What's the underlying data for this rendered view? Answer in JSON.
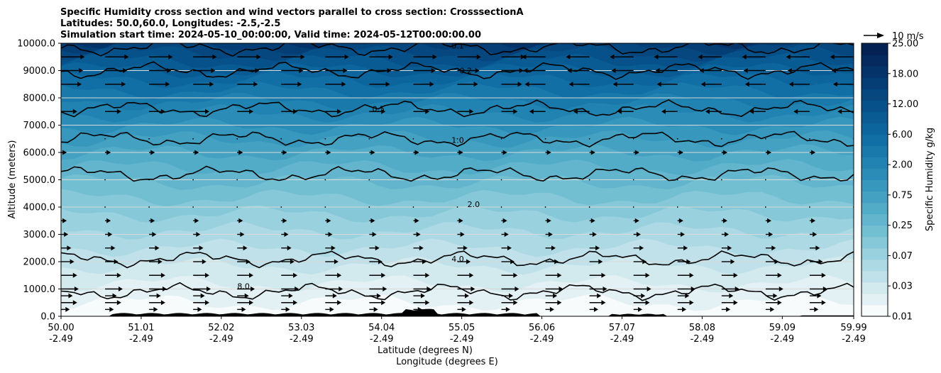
{
  "chart_data": {
    "type": "contour-cross-section",
    "title_lines": [
      "Specific Humidity cross section and wind vectors parallel to cross section: CrosssectionA",
      "Latitudes: 50.0,60.0, Longitudes: -2.5,-2.5",
      "Simulation start time: 2024-05-10_00:00:00, Valid time: 2024-05-12T00:00:00.00"
    ],
    "ylabel": "Altitude (meters)",
    "xlabel_lat": "Latitude (degrees N)",
    "xlabel_lon": "Longitude (degrees E)",
    "ylim": [
      0,
      10000
    ],
    "xlim": [
      50.0,
      59.99
    ],
    "yticks": [
      "0.0",
      "1000.0",
      "2000.0",
      "3000.0",
      "4000.0",
      "5000.0",
      "6000.0",
      "7000.0",
      "8000.0",
      "9000.0",
      "10000.0"
    ],
    "xticks": [
      {
        "lat": "50.00",
        "lon": "-2.49"
      },
      {
        "lat": "51.01",
        "lon": "-2.49"
      },
      {
        "lat": "52.02",
        "lon": "-2.49"
      },
      {
        "lat": "53.03",
        "lon": "-2.49"
      },
      {
        "lat": "54.04",
        "lon": "-2.49"
      },
      {
        "lat": "55.05",
        "lon": "-2.49"
      },
      {
        "lat": "56.06",
        "lon": "-2.49"
      },
      {
        "lat": "57.07",
        "lon": "-2.49"
      },
      {
        "lat": "58.08",
        "lon": "-2.49"
      },
      {
        "lat": "59.09",
        "lon": "-2.49"
      },
      {
        "lat": "59.99",
        "lon": "-2.49"
      }
    ],
    "grid": "horizontal",
    "colorbar": {
      "label": "Specific Humidity g/kg",
      "levels": [
        0.01,
        0.02,
        0.03,
        0.05,
        0.07,
        0.1,
        0.15,
        0.2,
        0.25,
        0.3,
        0.5,
        0.75,
        1.0,
        1.5,
        2.0,
        3.0,
        4.0,
        6.0,
        8.0,
        10.0,
        12.0,
        15.0,
        18.0,
        20.0,
        25.0
      ],
      "tick_labels": [
        "0.01",
        "0.03",
        "0.07",
        "0.25",
        "0.75",
        "2.00",
        "6.00",
        "12.00",
        "18.00",
        "25.00"
      ],
      "colors": [
        "#f7fbfc",
        "#e4f1f4",
        "#d2e9ee",
        "#c0e1e9",
        "#add9e4",
        "#99d1de",
        "#86c8d8",
        "#73bfd2",
        "#62b5cd",
        "#52abc7",
        "#44a1c2",
        "#3797bd",
        "#2b8db7",
        "#2183b1",
        "#1979ab",
        "#126fa5",
        "#0d659d",
        "#095b94",
        "#07518a",
        "#064780",
        "#053d75",
        "#04336a",
        "#042a5f",
        "#032153"
      ]
    },
    "contour_labels": [
      "0.1",
      "0.2",
      "0.5",
      "1.0",
      "2.0",
      "4.0",
      "8.0"
    ],
    "wind_key": "10 m/s",
    "wind_key_ms": 10,
    "wind_levels": [
      {
        "alt": 250,
        "u": 3
      },
      {
        "alt": 500,
        "u": 8
      },
      {
        "alt": 750,
        "u": 5
      },
      {
        "alt": 1000,
        "u": 9
      },
      {
        "alt": 1500,
        "u": 8
      },
      {
        "alt": 2000,
        "u": 6
      },
      {
        "alt": 2500,
        "u": 4
      },
      {
        "alt": 3000,
        "u": 2
      },
      {
        "alt": 3500,
        "u": 1
      },
      {
        "alt": 4000,
        "u": 0
      },
      {
        "alt": 5000,
        "u": 0
      },
      {
        "alt": 6000,
        "u": 1
      },
      {
        "alt": 6500,
        "u": 0
      },
      {
        "alt": 7500,
        "u": 8
      },
      {
        "alt": 8500,
        "u": 11
      },
      {
        "alt": 9000,
        "u": 12
      },
      {
        "alt": 9500,
        "u": 13
      }
    ]
  }
}
